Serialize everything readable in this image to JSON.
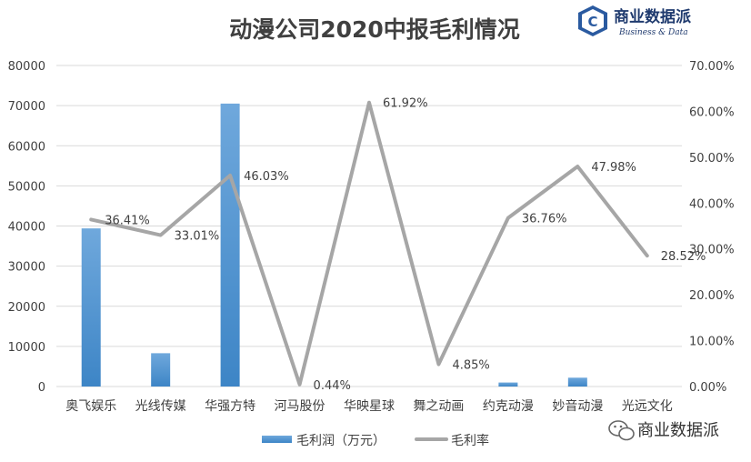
{
  "chart_data": {
    "type": "bar+line",
    "title": "动漫公司2020中报毛利情况",
    "categories": [
      "奥飞娱乐",
      "光线传媒",
      "华强方特",
      "河马股份",
      "华映星球",
      "舞之动画",
      "约克动漫",
      "妙音动漫",
      "光远文化"
    ],
    "series": [
      {
        "name": "毛利润（万元）",
        "type": "bar",
        "axis": "left",
        "values": [
          39400,
          8300,
          70500,
          0,
          0,
          0,
          1000,
          2200,
          0
        ]
      },
      {
        "name": "毛利率",
        "type": "line",
        "axis": "right",
        "values": [
          36.41,
          33.01,
          46.03,
          0.44,
          61.92,
          4.85,
          36.76,
          47.98,
          28.52
        ],
        "labels": [
          "36.41%",
          "33.01%",
          "46.03%",
          "0.44%",
          "61.92%",
          "4.85%",
          "36.76%",
          "47.98%",
          "28.52%"
        ]
      }
    ],
    "y_left": {
      "min": 0,
      "max": 80000,
      "ticks": [
        "0",
        "10000",
        "20000",
        "30000",
        "40000",
        "50000",
        "60000",
        "70000",
        "80000"
      ]
    },
    "y_right": {
      "min": 0,
      "max": 70,
      "ticks": [
        "0.00%",
        "10.00%",
        "20.00%",
        "30.00%",
        "40.00%",
        "50.00%",
        "60.00%",
        "70.00%"
      ]
    },
    "grid": true,
    "legend": "bottom",
    "colors": {
      "bar_top": "#6fa8dc",
      "bar_bottom": "#3d85c6",
      "line": "#a6a6a6",
      "grid": "#d9d9d9"
    }
  },
  "logo": {
    "letter": "C",
    "name": "商业数据派",
    "sub": "Business & Data",
    "icon": "cube-logo-icon"
  },
  "watermark": {
    "text": "商业数据派",
    "icon": "wechat-icon"
  }
}
